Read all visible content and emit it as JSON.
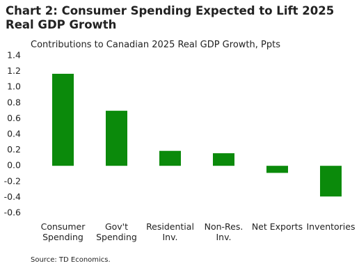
{
  "chart_data": {
    "type": "bar",
    "title": "Chart 2: Consumer Spending Expected to Lift 2025 Real GDP Growth",
    "subtitle": "Contributions to Canadian 2025 Real GDP Growth, Ppts",
    "source": "Source: TD Economics.",
    "categories": [
      "Consumer Spending",
      "Gov't Spending",
      "Residential Inv.",
      "Non-Res. Inv.",
      "Net Exports",
      "Inventories"
    ],
    "values": [
      1.17,
      0.7,
      0.19,
      0.16,
      -0.09,
      -0.39
    ],
    "color": "#0b8a0b",
    "ylim": [
      -0.6,
      1.4
    ],
    "yticks": [
      -0.6,
      -0.4,
      -0.2,
      {
        "value": 0,
        "label": "0.0"
      },
      0.2,
      0.4,
      0.6,
      0.8,
      {
        "value": 1,
        "label": "1.0"
      },
      1.2,
      1.4
    ],
    "grid": false
  }
}
